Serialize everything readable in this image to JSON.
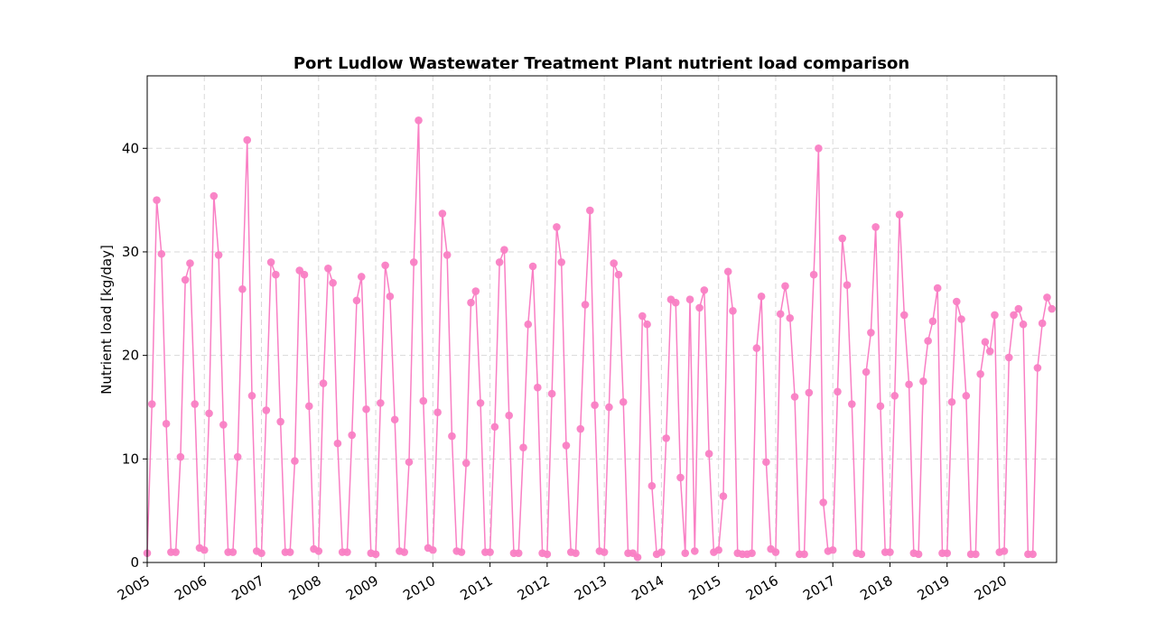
{
  "chart_data": {
    "type": "line",
    "title": "Port Ludlow Wastewater Treatment Plant nutrient load comparison",
    "xlabel": "",
    "ylabel": "Nutrient load [kg/day]",
    "x_start": "2005-01",
    "x_interval": "monthly",
    "xlim": [
      "2005-01",
      "2020-12"
    ],
    "ylim": [
      0,
      47
    ],
    "y_ticks": [
      0,
      10,
      20,
      30,
      40
    ],
    "x_ticks": [
      "2005",
      "2006",
      "2007",
      "2008",
      "2009",
      "2010",
      "2011",
      "2012",
      "2013",
      "2014",
      "2015",
      "2016",
      "2017",
      "2018",
      "2019",
      "2020"
    ],
    "grid": true,
    "marker": "circle",
    "color": "#f97fc4",
    "series": [
      {
        "values": [
          0.9,
          15.3,
          35.0,
          29.8,
          13.4,
          1.0,
          1.0,
          10.2,
          27.3,
          28.9,
          15.3,
          1.4,
          1.2,
          14.4,
          35.4,
          29.7,
          13.3,
          1.0,
          1.0,
          10.2,
          26.4,
          40.8,
          16.1,
          1.1,
          0.9,
          14.7,
          29.0,
          27.8,
          13.6,
          1.0,
          1.0,
          9.8,
          28.2,
          27.8,
          15.1,
          1.3,
          1.1,
          17.3,
          28.4,
          27.0,
          11.5,
          1.0,
          1.0,
          12.3,
          25.3,
          27.6,
          14.8,
          0.9,
          0.8,
          15.4,
          28.7,
          25.7,
          13.8,
          1.1,
          1.0,
          9.7,
          29.0,
          42.7,
          15.6,
          1.4,
          1.2,
          14.5,
          33.7,
          29.7,
          12.2,
          1.1,
          1.0,
          9.6,
          25.1,
          26.2,
          15.4,
          1.0,
          1.0,
          13.1,
          29.0,
          30.2,
          14.2,
          0.9,
          0.9,
          11.1,
          23.0,
          28.6,
          16.9,
          0.9,
          0.8,
          16.3,
          32.4,
          29.0,
          11.3,
          1.0,
          0.9,
          12.9,
          24.9,
          34.0,
          15.2,
          1.1,
          1.0,
          15.0,
          28.9,
          27.8,
          15.5,
          0.9,
          0.9,
          0.5,
          23.8,
          23.0,
          7.4,
          0.8,
          1.0,
          12.0,
          25.4,
          25.1,
          8.2,
          0.9,
          25.4,
          1.1,
          24.6,
          26.3,
          10.5,
          1.0,
          1.2,
          6.4,
          28.1,
          24.3,
          0.9,
          0.8,
          0.8,
          0.9,
          20.7,
          25.7,
          9.7,
          1.3,
          1.0,
          24.0,
          26.7,
          23.6,
          16.0,
          0.8,
          0.8,
          16.4,
          27.8,
          40.0,
          5.8,
          1.1,
          1.2,
          16.5,
          31.3,
          26.8,
          15.3,
          0.9,
          0.8,
          18.4,
          22.2,
          32.4,
          15.1,
          1.0,
          1.0,
          16.1,
          33.6,
          23.9,
          17.2,
          0.9,
          0.8,
          17.5,
          21.4,
          23.3,
          26.5,
          0.9,
          0.9,
          15.5,
          25.2,
          23.5,
          16.1,
          0.8,
          0.8,
          18.2,
          21.3,
          20.4,
          23.9,
          1.0,
          1.1,
          19.8,
          23.9,
          24.5,
          23.0,
          0.8,
          0.8,
          18.8,
          23.1,
          25.6,
          24.5
        ]
      }
    ]
  }
}
